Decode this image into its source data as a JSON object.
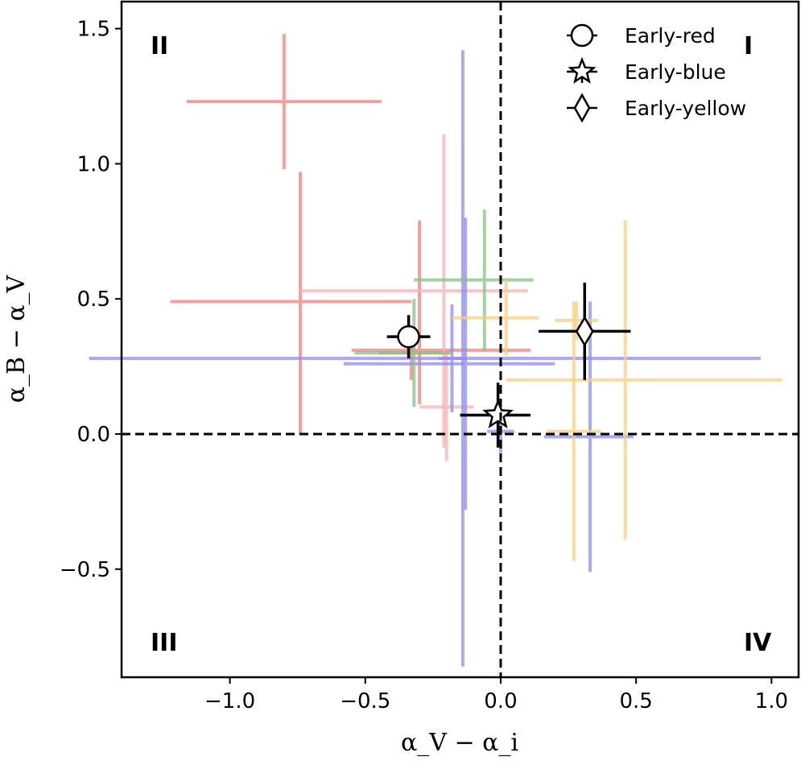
{
  "chart_data": {
    "type": "scatter",
    "title": "",
    "xlabel": "α_V − α_i",
    "ylabel": "α_B − α_V",
    "xlim": [
      -1.4,
      1.1
    ],
    "ylim": [
      -0.9,
      1.6
    ],
    "xticks": [
      -1.0,
      -0.5,
      0.0,
      0.5,
      1.0
    ],
    "xtick_labels": [
      "−1.0",
      "−0.5",
      "0.0",
      "0.5",
      "1.0"
    ],
    "yticks": [
      -0.5,
      0.0,
      0.5,
      1.0,
      1.5
    ],
    "ytick_labels": [
      "−0.5",
      "0.0",
      "0.5",
      "1.0",
      "1.5"
    ],
    "grid": false,
    "reference_lines": {
      "x": 0.0,
      "y": 0.0,
      "style": "dashed"
    },
    "quadrant_labels": [
      {
        "text": "I",
        "quadrant": "top-right"
      },
      {
        "text": "II",
        "quadrant": "top-left"
      },
      {
        "text": "III",
        "quadrant": "bottom-left"
      },
      {
        "text": "IV",
        "quadrant": "bottom-right"
      }
    ],
    "legend": {
      "position": "top-right",
      "entries": [
        {
          "label": "Early-red",
          "marker": "circle"
        },
        {
          "label": "Early-blue",
          "marker": "star"
        },
        {
          "label": "Early-yellow",
          "marker": "diamond"
        }
      ]
    },
    "colors": {
      "red": "#f08080",
      "lightred": "#f6b4b4",
      "blue": "#8e8ef0",
      "yellow": "#f8cf80",
      "green": "#86c286",
      "mean": "#000000"
    },
    "points": [
      {
        "group": "red",
        "x": -0.8,
        "y": 1.23,
        "xerr": [
          0.36,
          0.36
        ],
        "yerr": [
          0.25,
          0.25
        ]
      },
      {
        "group": "red",
        "x": -0.74,
        "y": 0.49,
        "xerr": [
          0.48,
          0.41
        ],
        "yerr": [
          0.49,
          0.48
        ]
      },
      {
        "group": "red",
        "x": -0.3,
        "y": 0.31,
        "xerr": [
          0.25,
          0.41
        ],
        "yerr": [
          0.2,
          0.48
        ]
      },
      {
        "group": "red",
        "x": -0.33,
        "y": 0.3,
        "xerr": [
          0.12,
          0.14
        ],
        "yerr": [
          0.1,
          0.1
        ]
      },
      {
        "group": "lightred",
        "x": -0.21,
        "y": 0.53,
        "xerr": [
          0.53,
          0.31
        ],
        "yerr": [
          0.58,
          0.58
        ]
      },
      {
        "group": "lightred",
        "x": -0.2,
        "y": 0.1,
        "xerr": [
          0.1,
          0.1
        ],
        "yerr": [
          0.2,
          0.2
        ]
      },
      {
        "group": "blue",
        "x": -0.14,
        "y": 0.28,
        "xerr": [
          1.38,
          1.1
        ],
        "yerr": [
          1.14,
          1.14
        ]
      },
      {
        "group": "blue",
        "x": -0.13,
        "y": 0.26,
        "xerr": [
          0.45,
          0.33
        ],
        "yerr": [
          0.54,
          0.54
        ]
      },
      {
        "group": "blue",
        "x": -0.18,
        "y": 0.28,
        "xerr": [
          0.05,
          0.05
        ],
        "yerr": [
          0.2,
          0.2
        ]
      },
      {
        "group": "blue",
        "x": 0.33,
        "y": -0.01,
        "xerr": [
          0.17,
          0.16
        ],
        "yerr": [
          0.5,
          0.5
        ]
      },
      {
        "group": "blue",
        "x": 0.0,
        "y": 0.01,
        "xerr": [
          0.05,
          0.05
        ],
        "yerr": [
          0.08,
          0.08
        ]
      },
      {
        "group": "green",
        "x": -0.06,
        "y": 0.57,
        "xerr": [
          0.26,
          0.18
        ],
        "yerr": [
          0.26,
          0.26
        ]
      },
      {
        "group": "green",
        "x": -0.32,
        "y": 0.3,
        "xerr": [
          0.22,
          0.14
        ],
        "yerr": [
          0.2,
          0.2
        ]
      },
      {
        "group": "yellow",
        "x": 0.02,
        "y": 0.43,
        "xerr": [
          0.2,
          0.12
        ],
        "yerr": [
          0.14,
          0.14
        ]
      },
      {
        "group": "yellow",
        "x": 0.27,
        "y": 0.01,
        "xerr": [
          0.1,
          0.1
        ],
        "yerr": [
          0.48,
          0.48
        ]
      },
      {
        "group": "yellow",
        "x": 0.46,
        "y": 0.2,
        "xerr": [
          0.44,
          0.58
        ],
        "yerr": [
          0.59,
          0.59
        ]
      },
      {
        "group": "yellow",
        "x": 0.28,
        "y": 0.42,
        "xerr": [
          0.08,
          0.08
        ],
        "yerr": [
          0.07,
          0.07
        ]
      }
    ],
    "means": [
      {
        "label": "Early-red",
        "marker": "circle",
        "x": -0.34,
        "y": 0.36,
        "xerr": [
          0.08,
          0.08
        ],
        "yerr": [
          0.08,
          0.08
        ]
      },
      {
        "label": "Early-blue",
        "marker": "star",
        "x": -0.01,
        "y": 0.07,
        "xerr": [
          0.14,
          0.12
        ],
        "yerr": [
          0.12,
          0.12
        ]
      },
      {
        "label": "Early-yellow",
        "marker": "diamond",
        "x": 0.31,
        "y": 0.38,
        "xerr": [
          0.17,
          0.17
        ],
        "yerr": [
          0.18,
          0.18
        ]
      }
    ]
  }
}
